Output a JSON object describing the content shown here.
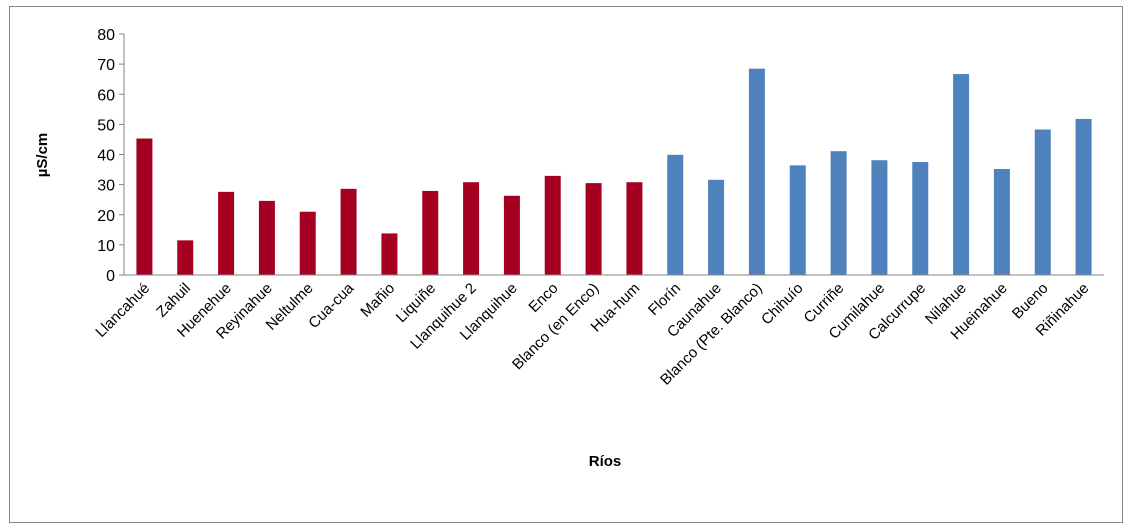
{
  "chart_data": {
    "type": "bar",
    "title": "",
    "xlabel": "Ríos",
    "ylabel": "µS/cm",
    "ylim": [
      0,
      80
    ],
    "yticks": [
      0,
      10,
      20,
      30,
      40,
      50,
      60,
      70,
      80
    ],
    "grid": false,
    "legend": "none",
    "categories": [
      "Llancahué",
      "Zahuil",
      "Huenehue",
      "Reyinahue",
      "Neltulme",
      "Cua-cua",
      "Mañio",
      "Liquiñe",
      "Llanquihue 2",
      "Llanquihue",
      "Enco",
      "Blanco (en Enco)",
      "Hua-hum",
      "Florín",
      "Caunahue",
      "Blanco (Pte. Blanco)",
      "Chihuío",
      "Curriñe",
      "Cumilahue",
      "Calcurrupe",
      "Nilahue",
      "Hueinahue",
      "Bueno",
      "Riñinahue"
    ],
    "values": [
      45.3,
      11.5,
      27.6,
      24.6,
      21.0,
      28.6,
      13.8,
      27.9,
      30.8,
      26.3,
      32.9,
      30.5,
      30.8,
      39.9,
      31.6,
      68.5,
      36.4,
      41.1,
      38.1,
      37.5,
      66.7,
      35.2,
      48.3,
      51.8
    ],
    "colors": [
      "#a50021",
      "#a50021",
      "#a50021",
      "#a50021",
      "#a50021",
      "#a50021",
      "#a50021",
      "#a50021",
      "#a50021",
      "#a50021",
      "#a50021",
      "#a50021",
      "#a50021",
      "#4f81bd",
      "#4f81bd",
      "#4f81bd",
      "#4f81bd",
      "#4f81bd",
      "#4f81bd",
      "#4f81bd",
      "#4f81bd",
      "#4f81bd",
      "#4f81bd",
      "#4f81bd"
    ]
  }
}
